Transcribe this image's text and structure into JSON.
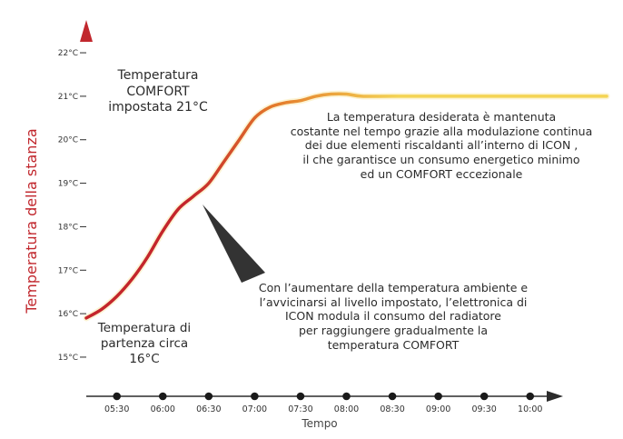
{
  "chart_data": {
    "type": "line",
    "title": "",
    "xlabel": "Tempo",
    "ylabel": "Temperatura della stanza",
    "x_ticks": [
      "05:30",
      "06:00",
      "06:30",
      "07:00",
      "07:30",
      "08:00",
      "08:30",
      "09:00",
      "09:30",
      "10:00"
    ],
    "y_ticks": [
      "15°C",
      "16°C",
      "17°C",
      "18°C",
      "19°C",
      "20°C",
      "21°C",
      "22°C"
    ],
    "ylim": [
      14.1,
      22.9
    ],
    "xlim": [
      "05:10",
      "10:50"
    ],
    "grid": false,
    "legend": "none",
    "series": [
      {
        "x": [
          "05:10",
          "05:20",
          "05:30",
          "05:40",
          "05:50",
          "06:00",
          "06:10",
          "06:20",
          "06:30",
          "06:40",
          "06:50",
          "07:00",
          "07:10",
          "07:20",
          "07:30",
          "07:40",
          "07:50",
          "08:00",
          "08:10",
          "08:30",
          "09:00",
          "09:30",
          "10:00",
          "10:30",
          "10:50"
        ],
        "values": [
          15.9,
          16.1,
          16.4,
          16.8,
          17.3,
          17.9,
          18.4,
          18.7,
          19.0,
          19.5,
          20.0,
          20.5,
          20.75,
          20.85,
          20.9,
          21.0,
          21.05,
          21.05,
          21.0,
          21.0,
          21.0,
          21.0,
          21.0,
          21.0,
          21.0
        ]
      }
    ],
    "colors": {
      "y_axis_top": "#c1272d",
      "y_axis_bottom": "#4aa8d8",
      "curve_start": "#c4262b",
      "curve_mid": "#e47a2b",
      "curve_end": "#f4d454",
      "x_axis": "#2b2b2b",
      "ylabel_color": "#c1272d",
      "pointer": "#333333"
    },
    "annotations": {
      "comfort": [
        "Temperatura",
        "COMFORT",
        "impostata 21°C"
      ],
      "start": [
        "Temperatura di",
        "partenza circa",
        "16°C"
      ],
      "maintained": [
        "La temperatura desiderata è mantenuta",
        "costante nel tempo grazie alla modulazione continua",
        "dei due elementi riscaldanti all’interno di ICON ,",
        "il che garantisce un consumo energetico minimo",
        "ed un COMFORT eccezionale"
      ],
      "approach": [
        "Con l’aumentare della temperatura ambiente e",
        "l’avvicinarsi al livello impostato, l’elettronica di",
        "ICON modula il consumo del radiatore",
        "per raggiungere gradualmente la",
        "temperatura COMFORT"
      ]
    }
  }
}
